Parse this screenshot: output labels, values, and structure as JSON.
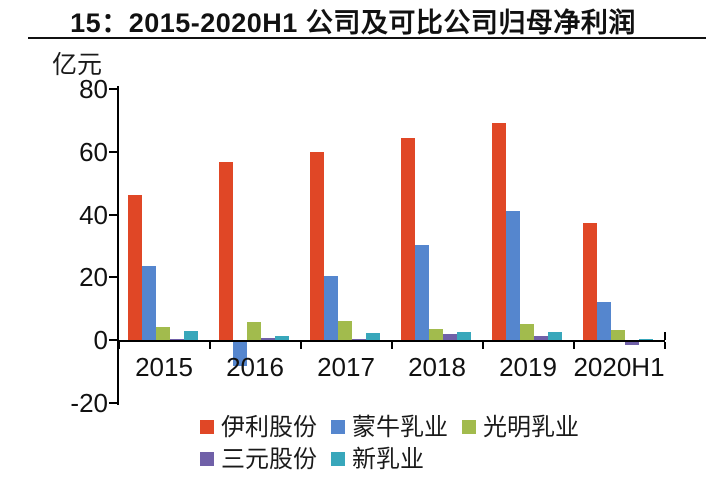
{
  "header": {
    "title": "15：2015-2020H1 公司及可比公司归母净利润"
  },
  "chart_data": {
    "type": "bar",
    "title": "15：2015-2020H1 公司及可比公司归母净利润",
    "unit_label": "亿元",
    "categories": [
      "2015",
      "2016",
      "2017",
      "2018",
      "2019",
      "2020H1"
    ],
    "series": [
      {
        "name": "伊利股份",
        "color": "#E04726",
        "values": [
          46.3,
          56.6,
          60.0,
          64.4,
          69.3,
          37.4
        ]
      },
      {
        "name": "蒙牛乳业",
        "color": "#5586CE",
        "values": [
          23.7,
          -7.5,
          20.5,
          30.4,
          41.0,
          12.1
        ]
      },
      {
        "name": "光明乳业",
        "color": "#A2BB4D",
        "values": [
          4.2,
          5.6,
          6.2,
          3.4,
          5.0,
          3.1
        ]
      },
      {
        "name": "三元股份",
        "color": "#7060A8",
        "values": [
          0.4,
          0.6,
          0.3,
          1.8,
          1.4,
          -1.0
        ]
      },
      {
        "name": "新乳业",
        "color": "#38A7BB",
        "values": [
          2.9,
          1.4,
          2.2,
          2.4,
          2.4,
          0.4
        ]
      }
    ],
    "ylim": [
      -20,
      80
    ],
    "yticks": [
      80,
      60,
      40,
      20,
      0,
      -20
    ],
    "grid": false,
    "legend_position": "bottom"
  }
}
